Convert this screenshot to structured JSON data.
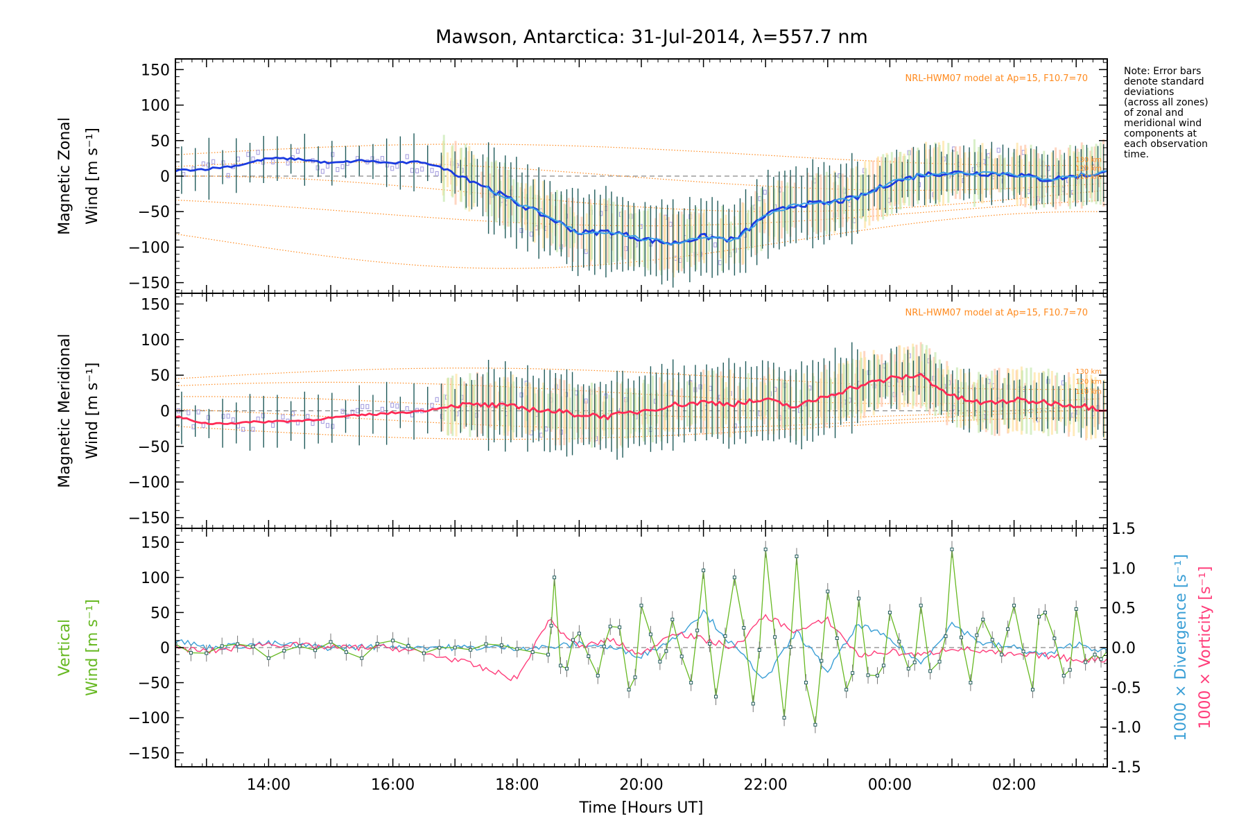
{
  "title": "Mawson, Antarctica: 31-Jul-2014, λ=557.7 nm",
  "note_lines": [
    "Note: Error bars",
    "denote standard",
    "deviations",
    "(across all zones)",
    "of zonal and",
    "meridional wind",
    "components at",
    "each observation",
    "time."
  ],
  "colors": {
    "zonal": "#1a3be0",
    "zonal_light": "#3aa0e8",
    "meridional": "#ff2a55",
    "vertical": "#66b821",
    "divergence": "#3a9fd6",
    "vorticity": "#ff3d7a",
    "model": "#ff8a1e",
    "errorbar": "#1f5a5a",
    "scatter": "#a7a0e0"
  },
  "chart_data": [
    {
      "type": "line",
      "panel": "zonal",
      "ylabel": [
        "Magnetic Zonal",
        "Wind [m s⁻¹]"
      ],
      "ylim": [
        -165,
        165
      ],
      "yticks": [
        150,
        100,
        50,
        0,
        -50,
        -100,
        -150
      ],
      "xlim": [
        12.5,
        27.5
      ],
      "model_note": "NRL-HWM07 model at Ap=15, F10.7=70",
      "altitude_labels": [
        "130 km",
        "120 km",
        "110 km"
      ],
      "series": [
        {
          "x": [
            12.5,
            13.0,
            13.5,
            14.0,
            14.5,
            15.0,
            15.5,
            16.0,
            16.5,
            17.0,
            17.5,
            18.0,
            18.5,
            19.0,
            19.5,
            20.0,
            20.5,
            21.0,
            21.5,
            22.0,
            22.5,
            23.0,
            23.5,
            24.0,
            24.5,
            25.0,
            25.5,
            26.0,
            26.5,
            27.0,
            27.5
          ],
          "y": [
            8,
            10,
            15,
            25,
            24,
            18,
            22,
            18,
            20,
            5,
            -15,
            -38,
            -58,
            -80,
            -78,
            -88,
            -95,
            -85,
            -90,
            -55,
            -40,
            -38,
            -30,
            -10,
            2,
            5,
            4,
            3,
            -5,
            0,
            5
          ]
        }
      ]
    },
    {
      "type": "line",
      "panel": "meridional",
      "ylabel": [
        "Magnetic Meridional",
        "Wind [m s⁻¹]"
      ],
      "ylim": [
        -165,
        165
      ],
      "yticks": [
        150,
        100,
        50,
        0,
        -50,
        -100,
        -150
      ],
      "xlim": [
        12.5,
        27.5
      ],
      "model_note": "NRL-HWM07 model at Ap=15, F10.7=70",
      "altitude_labels": [
        "130 km",
        "120 km",
        "110 km"
      ],
      "series": [
        {
          "x": [
            12.5,
            13.0,
            13.5,
            14.0,
            14.5,
            15.0,
            15.5,
            16.0,
            16.5,
            17.0,
            17.5,
            18.0,
            18.5,
            19.0,
            19.5,
            20.0,
            20.5,
            21.0,
            21.5,
            22.0,
            22.5,
            23.0,
            23.5,
            24.0,
            24.5,
            25.0,
            25.5,
            26.0,
            26.5,
            27.0,
            27.5
          ],
          "y": [
            -8,
            -18,
            -17,
            -15,
            -14,
            -10,
            -6,
            -3,
            0,
            8,
            8,
            5,
            0,
            -5,
            -8,
            0,
            8,
            12,
            10,
            15,
            5,
            22,
            35,
            45,
            50,
            20,
            10,
            15,
            12,
            8,
            2
          ]
        }
      ]
    },
    {
      "type": "line",
      "panel": "vertical",
      "ylabel": [
        "Vertical",
        "Wind [m s⁻¹]"
      ],
      "y2label_divergence": "1000 × Divergence [s⁻¹]",
      "y2label_vorticity": "1000 × Vorticity [s⁻¹]",
      "ylim": [
        -170,
        170
      ],
      "yticks": [
        150,
        100,
        50,
        0,
        -50,
        -100,
        -150
      ],
      "y2lim": [
        -1.5,
        1.5
      ],
      "y2ticks": [
        "1.5",
        "1.0",
        "0.5",
        "0.0",
        "-0.5",
        "-1.0",
        "-1.5"
      ],
      "xlim": [
        12.5,
        27.5
      ],
      "xticks": [
        "14:00",
        "16:00",
        "18:00",
        "20:00",
        "22:00",
        "00:00",
        "02:00"
      ],
      "xtick_values": [
        14,
        16,
        18,
        20,
        22,
        24,
        26
      ],
      "xlabel": "Time [Hours UT]",
      "series": [
        {
          "name": "vertical",
          "x": [
            12.5,
            13.0,
            13.5,
            14.0,
            14.5,
            15.0,
            15.5,
            16.0,
            16.5,
            17.0,
            17.5,
            18.0,
            18.5,
            18.6,
            18.8,
            19.0,
            19.3,
            19.5,
            19.8,
            20.0,
            20.3,
            20.5,
            20.8,
            21.0,
            21.2,
            21.5,
            21.8,
            22.0,
            22.3,
            22.5,
            22.8,
            23.0,
            23.3,
            23.5,
            23.8,
            24.0,
            24.3,
            24.5,
            24.8,
            25.0,
            25.3,
            25.5,
            25.8,
            26.0,
            26.3,
            26.5,
            26.8,
            27.0,
            27.3,
            27.5
          ],
          "y": [
            5,
            -8,
            5,
            -15,
            2,
            8,
            -15,
            10,
            -8,
            0,
            5,
            -2,
            -10,
            100,
            -30,
            20,
            -40,
            30,
            -60,
            60,
            -20,
            40,
            -50,
            110,
            -70,
            100,
            -80,
            140,
            -100,
            130,
            -110,
            80,
            -60,
            70,
            -40,
            50,
            -30,
            60,
            -20,
            140,
            -50,
            40,
            -10,
            60,
            -60,
            50,
            -40,
            55,
            -10,
            -5
          ]
        },
        {
          "name": "divergence",
          "x": [
            12.5,
            13.0,
            14.0,
            15.0,
            16.0,
            17.0,
            18.0,
            18.5,
            19.0,
            19.5,
            20.0,
            20.5,
            21.0,
            21.5,
            22.0,
            22.5,
            23.0,
            23.5,
            24.0,
            24.5,
            25.0,
            25.5,
            26.0,
            26.5,
            27.0,
            27.5
          ],
          "y": [
            0.1,
            0.0,
            0.05,
            0.0,
            0.02,
            0.0,
            0.0,
            0.0,
            0.05,
            0.0,
            -0.1,
            0.1,
            0.45,
            0.0,
            -0.4,
            0.2,
            -0.3,
            0.3,
            0.1,
            -0.2,
            0.3,
            0.05,
            0.0,
            -0.1,
            0.05,
            -0.05
          ]
        },
        {
          "name": "vorticity",
          "x": [
            12.5,
            13.0,
            14.0,
            15.0,
            16.0,
            17.0,
            18.0,
            18.5,
            19.0,
            19.5,
            20.0,
            20.5,
            21.0,
            21.5,
            22.0,
            22.5,
            23.0,
            23.5,
            24.0,
            24.5,
            25.0,
            25.5,
            26.0,
            26.5,
            27.0,
            27.5
          ],
          "y": [
            0.0,
            -0.05,
            0.05,
            0.0,
            0.0,
            -0.15,
            -0.4,
            0.35,
            0.0,
            0.1,
            -0.1,
            0.2,
            0.1,
            0.0,
            0.4,
            0.2,
            0.35,
            -0.1,
            -0.05,
            -0.1,
            0.0,
            -0.05,
            -0.1,
            -0.1,
            -0.15,
            -0.15
          ]
        }
      ]
    }
  ]
}
